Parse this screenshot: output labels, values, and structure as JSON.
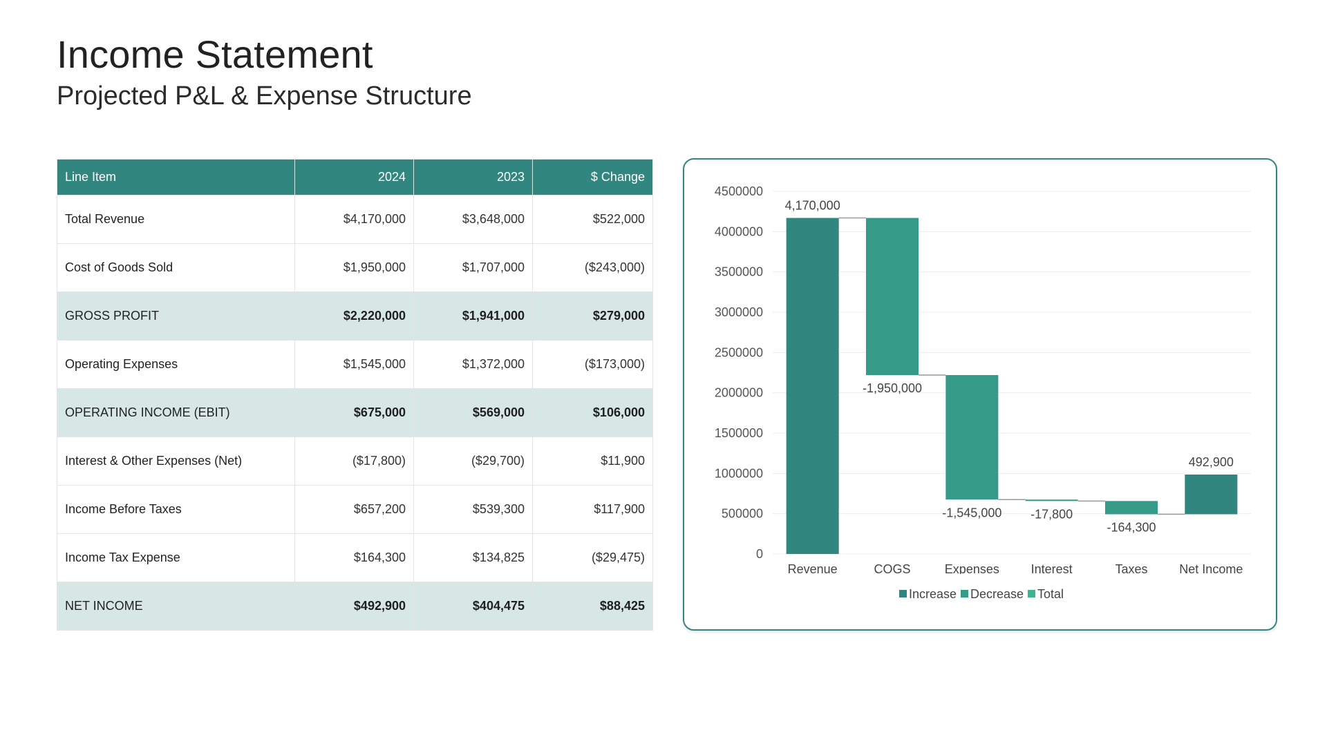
{
  "header": {
    "title": "Income Statement",
    "subtitle": "Projected P&L & Expense Structure"
  },
  "table": {
    "columns": [
      "Line Item",
      "2024",
      "2023",
      "$ Change"
    ],
    "rows": [
      {
        "label": "Total Revenue",
        "y2024": "$4,170,000",
        "y2023": "$3,648,000",
        "change": "$522,000",
        "subtotal": false
      },
      {
        "label": "Cost of Goods Sold",
        "y2024": "$1,950,000",
        "y2023": "$1,707,000",
        "change": "($243,000)",
        "subtotal": false
      },
      {
        "label": "GROSS PROFIT",
        "y2024": "$2,220,000",
        "y2023": "$1,941,000",
        "change": "$279,000",
        "subtotal": true
      },
      {
        "label": "Operating Expenses",
        "y2024": "$1,545,000",
        "y2023": "$1,372,000",
        "change": "($173,000)",
        "subtotal": false
      },
      {
        "label": "OPERATING INCOME (EBIT)",
        "y2024": "$675,000",
        "y2023": "$569,000",
        "change": "$106,000",
        "subtotal": true
      },
      {
        "label": "Interest & Other Expenses (Net)",
        "y2024": "($17,800)",
        "y2023": "($29,700)",
        "change": "$11,900",
        "subtotal": false
      },
      {
        "label": "Income Before Taxes",
        "y2024": "$657,200",
        "y2023": "$539,300",
        "change": "$117,900",
        "subtotal": false
      },
      {
        "label": "Income Tax Expense",
        "y2024": "$164,300",
        "y2023": "$134,825",
        "change": "($29,475)",
        "subtotal": false
      },
      {
        "label": "NET INCOME",
        "y2024": "$492,900",
        "y2023": "$404,475",
        "change": "$88,425",
        "subtotal": true
      }
    ]
  },
  "colors": {
    "header_bg": "#31877f",
    "subtotal_bg": "#d6e7e5",
    "increase": "#31877f",
    "decrease": "#359a88",
    "total": "#3cb594",
    "connector": "#9a9a9a",
    "grid": "#ececec"
  },
  "chart_data": {
    "type": "bar",
    "subtype": "waterfall",
    "categories": [
      "Revenue",
      "COGS",
      "Expenses",
      "Interest",
      "Taxes",
      "Net Income"
    ],
    "values": [
      4170000,
      -1950000,
      -1545000,
      -17800,
      -164300,
      492900
    ],
    "kinds": [
      "increase",
      "decrease",
      "decrease",
      "decrease",
      "decrease",
      "increase"
    ],
    "data_labels": [
      "4,170,000",
      "-1,950,000",
      "-1,545,000",
      "-17,800",
      "-164,300",
      "492,900"
    ],
    "ylim": [
      0,
      4500000
    ],
    "yticks": [
      "0",
      "500000",
      "1000000",
      "1500000",
      "2000000",
      "2500000",
      "3000000",
      "3500000",
      "4000000",
      "4500000"
    ],
    "legend": [
      "Increase",
      "Decrease",
      "Total"
    ],
    "legend_position": "bottom",
    "grid": true
  }
}
